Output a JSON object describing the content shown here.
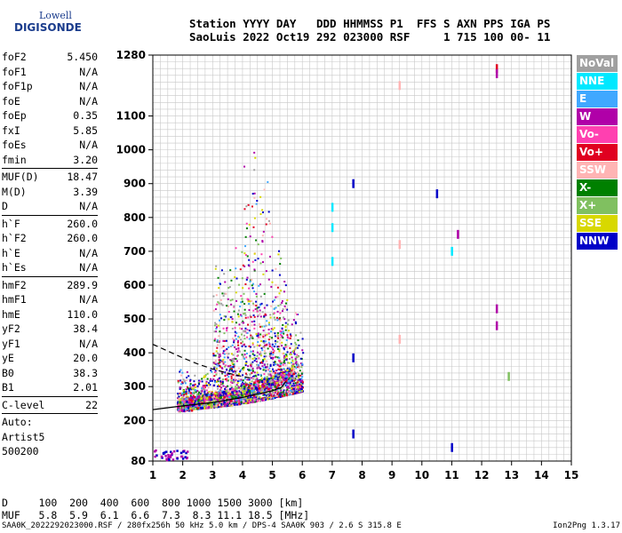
{
  "logo": {
    "line1": "Lowell",
    "line2": "DIGISONDE"
  },
  "header": {
    "line1": "Station YYYY DAY   DDD HHMMSS P1  FFS S AXN PPS IGA PS",
    "line2": "SaoLuis 2022 Oct19 292 023000 RSF     1 715 100 00- 11"
  },
  "params": [
    [
      [
        "foF2",
        "5.450"
      ],
      [
        "foF1",
        "N/A"
      ],
      [
        "foF1p",
        "N/A"
      ],
      [
        "foE",
        "N/A"
      ],
      [
        "foEp",
        "0.35"
      ],
      [
        "fxI",
        "5.85"
      ],
      [
        "foEs",
        "N/A"
      ],
      [
        "fmin",
        "3.20"
      ]
    ],
    [
      [
        "MUF(D)",
        "18.47"
      ],
      [
        "M(D)",
        "3.39"
      ],
      [
        "D",
        "N/A"
      ]
    ],
    [
      [
        "h`F",
        "260.0"
      ],
      [
        "h`F2",
        "260.0"
      ],
      [
        "h`E",
        "N/A"
      ],
      [
        "h`Es",
        "N/A"
      ]
    ],
    [
      [
        "hmF2",
        "289.9"
      ],
      [
        "hmF1",
        "N/A"
      ],
      [
        "hmE",
        "110.0"
      ],
      [
        "yF2",
        "38.4"
      ],
      [
        "yF1",
        "N/A"
      ],
      [
        "yE",
        "20.0"
      ],
      [
        "B0",
        "38.3"
      ],
      [
        "B1",
        "2.01"
      ]
    ],
    [
      [
        "C-level",
        "22"
      ]
    ],
    [
      [
        "Auto:",
        ""
      ],
      [
        "Artist5",
        ""
      ],
      [
        "500200",
        ""
      ]
    ]
  ],
  "legend": [
    {
      "label": "NoVal",
      "color": "#a0a0a0"
    },
    {
      "label": "NNE",
      "color": "#00e8ff"
    },
    {
      "label": "E",
      "color": "#40a8ff"
    },
    {
      "label": "W",
      "color": "#b000a8"
    },
    {
      "label": "Vo-",
      "color": "#ff40b0"
    },
    {
      "label": "Vo+",
      "color": "#e00020"
    },
    {
      "label": "SSW",
      "color": "#ffb4b4"
    },
    {
      "label": "X-",
      "color": "#008000"
    },
    {
      "label": "X+",
      "color": "#80c060"
    },
    {
      "label": "SSE",
      "color": "#d8d800"
    },
    {
      "label": "NNW",
      "color": "#0000c8"
    }
  ],
  "muf_table": {
    "line1": "D     100  200  400  600  800 1000 1500 3000 [km]",
    "line2": "MUF   5.8  5.9  6.1  6.6  7.3  8.3 11.1 18.5 [MHz]"
  },
  "footer": {
    "left": "SAA0K_2022292023000.RSF / 280fx256h 50 kHz 5.0 km / DPS-4 SAA0K 903 / 2.6 S 315.8 E",
    "right": "Ion2Png 1.3.17"
  },
  "chart_data": {
    "type": "scatter",
    "xlim": [
      1,
      15
    ],
    "ylim": [
      80,
      1280
    ],
    "x_ticks": [
      1,
      2,
      3,
      4,
      5,
      6,
      7,
      8,
      9,
      10,
      11,
      12,
      13,
      14,
      15
    ],
    "y_ticks": [
      80,
      200,
      300,
      400,
      500,
      600,
      700,
      800,
      900,
      1000,
      1100,
      1280
    ],
    "grid": true,
    "ionogram_trace_F2": {
      "x": [
        1.0,
        2.0,
        3.0,
        4.0,
        4.5,
        5.0,
        5.3,
        5.45
      ],
      "y": [
        232,
        243,
        253,
        268,
        278,
        288,
        298,
        315
      ]
    },
    "profile_dashed": {
      "x": [
        1.0,
        1.5,
        2.0,
        2.5,
        3.0,
        3.5,
        4.0,
        4.3
      ],
      "y": [
        425,
        405,
        385,
        367,
        352,
        340,
        330,
        325
      ]
    },
    "echo_clusters": [
      {
        "x": [
          1.8,
          5.3
        ],
        "y": [
          220,
          1050
        ]
      },
      {
        "x": [
          2.7,
          6.0
        ],
        "y": [
          240,
          700
        ]
      }
    ],
    "isolated_echoes": [
      {
        "x": 7.0,
        "y": 830,
        "color": "#00e8ff"
      },
      {
        "x": 7.0,
        "y": 770,
        "color": "#00e8ff"
      },
      {
        "x": 7.0,
        "y": 670,
        "color": "#00e8ff"
      },
      {
        "x": 7.7,
        "y": 900,
        "color": "#0000c8"
      },
      {
        "x": 7.7,
        "y": 385,
        "color": "#0000c8"
      },
      {
        "x": 7.7,
        "y": 160,
        "color": "#0000c8"
      },
      {
        "x": 9.25,
        "y": 1190,
        "color": "#ffb4b4"
      },
      {
        "x": 9.25,
        "y": 720,
        "color": "#ffb4b4"
      },
      {
        "x": 9.25,
        "y": 440,
        "color": "#ffb4b4"
      },
      {
        "x": 10.5,
        "y": 870,
        "color": "#0000c8"
      },
      {
        "x": 11.0,
        "y": 700,
        "color": "#00e8ff"
      },
      {
        "x": 11.2,
        "y": 750,
        "color": "#b000a8"
      },
      {
        "x": 11.0,
        "y": 120,
        "color": "#0000c8"
      },
      {
        "x": 12.5,
        "y": 1240,
        "color": "#e00020"
      },
      {
        "x": 12.5,
        "y": 1225,
        "color": "#b000a8"
      },
      {
        "x": 12.5,
        "y": 530,
        "color": "#b000a8"
      },
      {
        "x": 12.5,
        "y": 480,
        "color": "#b000a8"
      },
      {
        "x": 12.9,
        "y": 330,
        "color": "#80c060"
      }
    ]
  }
}
